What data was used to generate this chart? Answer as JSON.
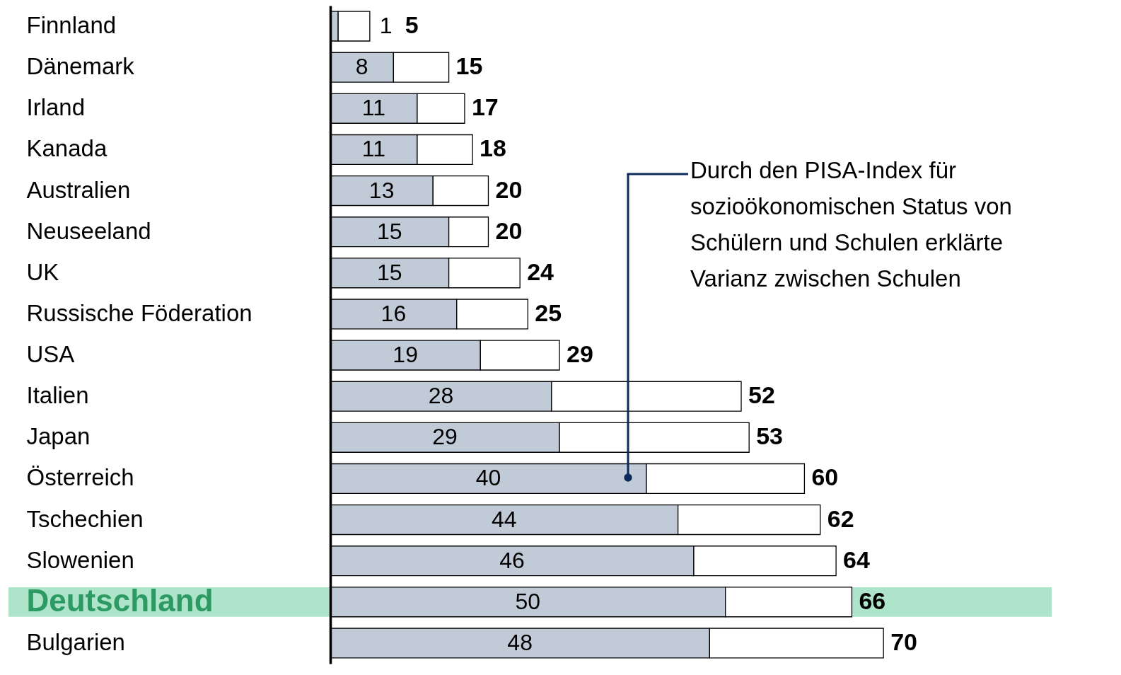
{
  "chart_data": {
    "type": "bar",
    "orientation": "horizontal",
    "stacked": true,
    "tick_labels": "y",
    "categories": [
      "Finnland",
      "Dänemark",
      "Irland",
      "Kanada",
      "Australien",
      "Neuseeland",
      "UK",
      "Russische Föderation",
      "USA",
      "Italien",
      "Japan",
      "Österreich",
      "Tschechien",
      "Slowenien",
      "Deutschland",
      "Bulgarien"
    ],
    "series": [
      {
        "color": "#c0cbd7",
        "values": [
          1,
          8,
          11,
          11,
          13,
          15,
          15,
          16,
          19,
          28,
          29,
          40,
          44,
          46,
          50,
          48
        ],
        "value_labels": [
          "1",
          "8",
          "11",
          "11",
          "13",
          "15",
          "15",
          "16",
          "19",
          "28",
          "29",
          "40",
          "44",
          "46",
          "50",
          "48"
        ]
      },
      {
        "color": "#ffffff",
        "values": [
          4,
          7,
          6,
          7,
          7,
          5,
          9,
          9,
          10,
          24,
          24,
          20,
          18,
          18,
          16,
          22
        ]
      }
    ],
    "totals": [
      "5",
      "15",
      "17",
      "18",
      "20",
      "20",
      "24",
      "25",
      "29",
      "52",
      "53",
      "60",
      "62",
      "64",
      "66",
      "70"
    ],
    "bands": [
      {
        "axis": "y",
        "from": "Deutschland",
        "to": "Deutschland",
        "color": "#aee4c9"
      }
    ],
    "annotations": [
      "Durch den PISA-Index für sozioökonomischen Status von Schülern und Schulen erklärte Varianz zwischen Schulen"
    ]
  }
}
